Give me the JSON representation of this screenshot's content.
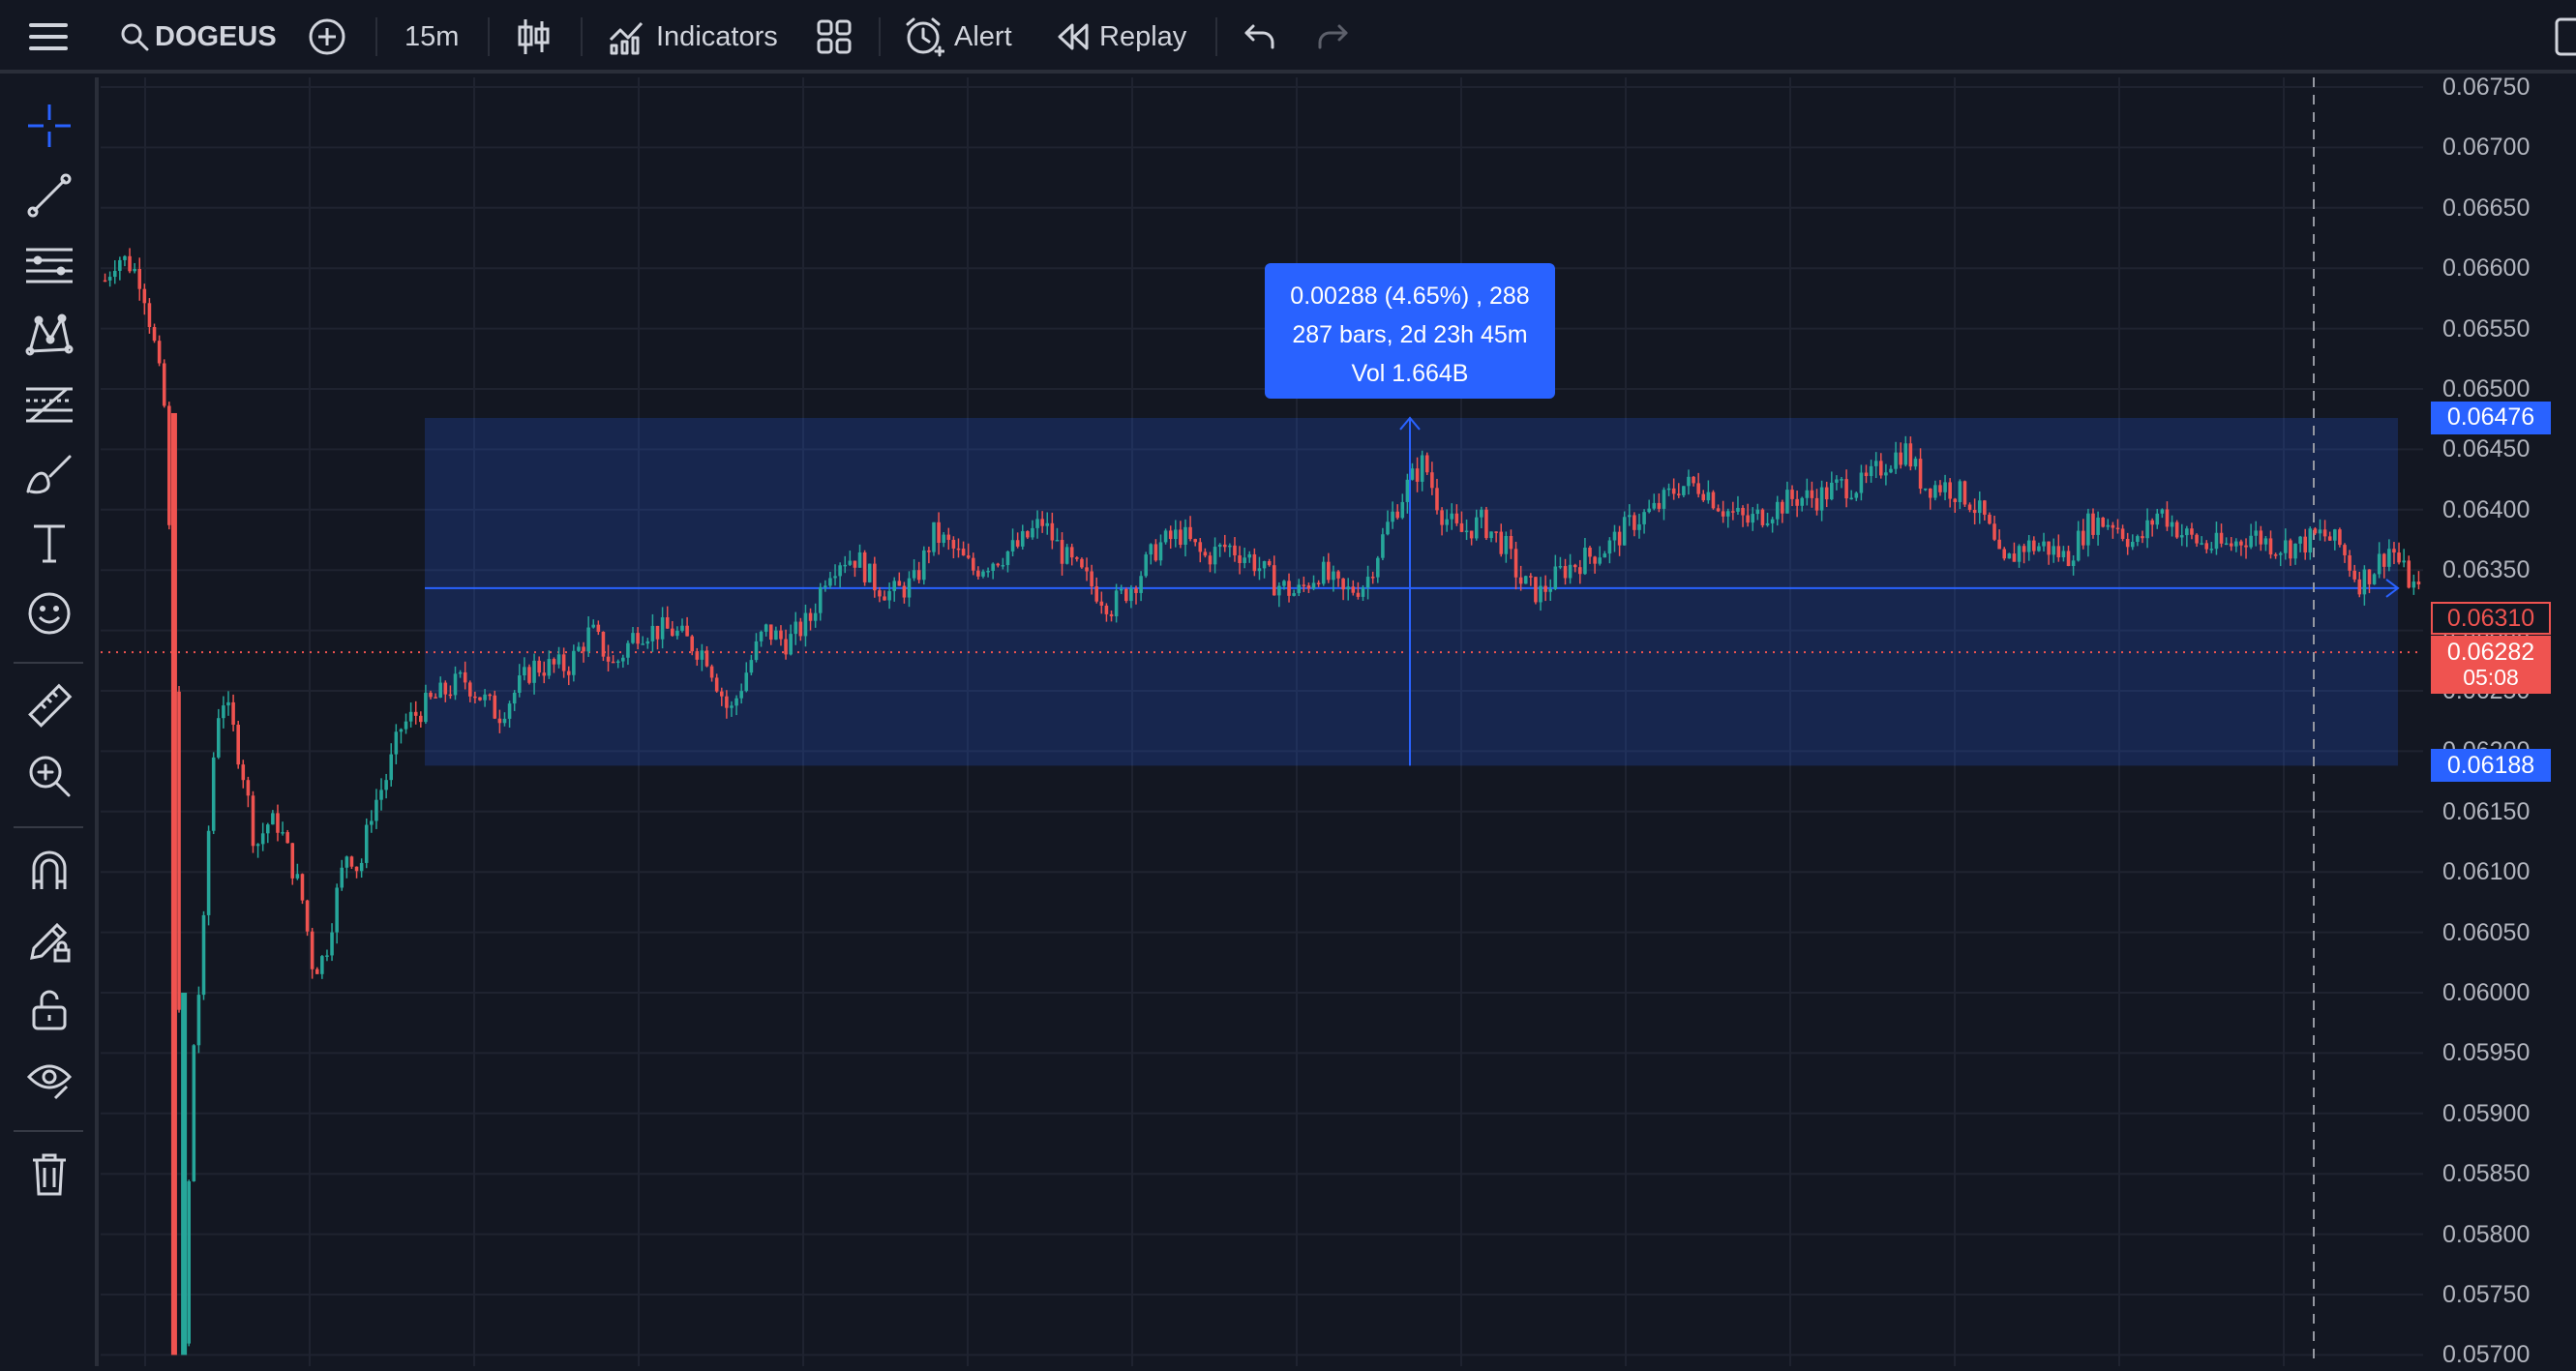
{
  "toolbar": {
    "symbol": "DOGEUS",
    "interval": "15m",
    "indicators_label": "Indicators",
    "alert_label": "Alert",
    "replay_label": "Replay",
    "icons": [
      "menu-icon",
      "search-icon",
      "add-symbol-icon",
      "candles-icon",
      "indicators-icon",
      "layouts-icon",
      "alert-icon",
      "replay-icon",
      "undo-icon",
      "redo-icon"
    ]
  },
  "sidebar": {
    "tools": [
      "crosshair",
      "trend-line",
      "horizontal-lines",
      "pattern",
      "fib",
      "brush",
      "text",
      "emoji",
      "ruler",
      "zoom-in",
      "magnet",
      "lock-drawing",
      "lock",
      "eye",
      "trash"
    ]
  },
  "measure": {
    "line1": "0.00288 (4.65%) , 288",
    "line2": "287 bars, 2d 23h 45m",
    "line3": "Vol 1.664B"
  },
  "price_axis": {
    "ticks": [
      "0.06750",
      "0.06700",
      "0.06650",
      "0.06600",
      "0.06550",
      "0.06500",
      "0.06450",
      "0.06400",
      "0.06350",
      "0.06300",
      "0.06250",
      "0.06200",
      "0.06150",
      "0.06100",
      "0.06050",
      "0.06000",
      "0.05950",
      "0.05900",
      "0.05850",
      "0.05800",
      "0.05750",
      "0.05700"
    ],
    "upper_range": "0.06476",
    "lower_range": "0.06188",
    "last_price": "0.06310",
    "current_price": "0.06282",
    "countdown": "05:08"
  },
  "colors": {
    "background": "#131722",
    "up": "#26a69a",
    "down": "#ef5350",
    "accent": "#2962ff",
    "range_fill": "rgba(41,98,255,0.20)"
  },
  "chart_data": {
    "type": "candlestick",
    "symbol": "DOGEUS",
    "interval": "15m",
    "ylim": [
      0.057,
      0.0675
    ],
    "range_top": 0.06476,
    "range_bottom": 0.06188,
    "range_start_price": 0.06335,
    "current": 0.06282,
    "close_path": [
      [
        0.0,
        0.0659
      ],
      [
        0.005,
        0.0661
      ],
      [
        0.01,
        0.06605
      ],
      [
        0.016,
        0.0659
      ],
      [
        0.021,
        0.0654
      ],
      [
        0.026,
        0.0648
      ],
      [
        0.03,
        0.0625
      ],
      [
        0.034,
        0.057
      ],
      [
        0.038,
        0.0595
      ],
      [
        0.042,
        0.0603
      ],
      [
        0.046,
        0.0618
      ],
      [
        0.05,
        0.0625
      ],
      [
        0.055,
        0.0622
      ],
      [
        0.06,
        0.0618
      ],
      [
        0.065,
        0.0612
      ],
      [
        0.07,
        0.0614
      ],
      [
        0.075,
        0.0614
      ],
      [
        0.08,
        0.0611
      ],
      [
        0.085,
        0.0608
      ],
      [
        0.09,
        0.0602
      ],
      [
        0.095,
        0.0603
      ],
      [
        0.1,
        0.0608
      ],
      [
        0.105,
        0.0612
      ],
      [
        0.11,
        0.061
      ],
      [
        0.115,
        0.0615
      ],
      [
        0.122,
        0.0618
      ],
      [
        0.128,
        0.0622
      ],
      [
        0.14,
        0.0624
      ],
      [
        0.155,
        0.0626
      ],
      [
        0.17,
        0.0623
      ],
      [
        0.185,
        0.0627
      ],
      [
        0.2,
        0.0627
      ],
      [
        0.21,
        0.063
      ],
      [
        0.22,
        0.0627
      ],
      [
        0.23,
        0.063
      ],
      [
        0.245,
        0.063
      ],
      [
        0.26,
        0.0628
      ],
      [
        0.27,
        0.0623
      ],
      [
        0.278,
        0.0627
      ],
      [
        0.285,
        0.063
      ],
      [
        0.295,
        0.0629
      ],
      [
        0.305,
        0.0631
      ],
      [
        0.312,
        0.0635
      ],
      [
        0.318,
        0.0636
      ],
      [
        0.325,
        0.0636
      ],
      [
        0.332,
        0.0634
      ],
      [
        0.34,
        0.0633
      ],
      [
        0.35,
        0.0634
      ],
      [
        0.358,
        0.0638
      ],
      [
        0.365,
        0.0637
      ],
      [
        0.375,
        0.0635
      ],
      [
        0.385,
        0.0636
      ],
      [
        0.395,
        0.0637
      ],
      [
        0.405,
        0.0639
      ],
      [
        0.415,
        0.0636
      ],
      [
        0.425,
        0.0634
      ],
      [
        0.435,
        0.0632
      ],
      [
        0.445,
        0.0634
      ],
      [
        0.455,
        0.0637
      ],
      [
        0.465,
        0.0638
      ],
      [
        0.475,
        0.0636
      ],
      [
        0.485,
        0.0637
      ],
      [
        0.495,
        0.0636
      ],
      [
        0.505,
        0.0634
      ],
      [
        0.515,
        0.0633
      ],
      [
        0.525,
        0.0635
      ],
      [
        0.535,
        0.0633
      ],
      [
        0.545,
        0.0634
      ],
      [
        0.555,
        0.0639
      ],
      [
        0.563,
        0.0642
      ],
      [
        0.57,
        0.0644
      ],
      [
        0.577,
        0.064
      ],
      [
        0.585,
        0.0638
      ],
      [
        0.595,
        0.0639
      ],
      [
        0.605,
        0.0637
      ],
      [
        0.612,
        0.0634
      ],
      [
        0.62,
        0.0633
      ],
      [
        0.63,
        0.0635
      ],
      [
        0.64,
        0.0636
      ],
      [
        0.65,
        0.0637
      ],
      [
        0.66,
        0.0639
      ],
      [
        0.67,
        0.064
      ],
      [
        0.68,
        0.0642
      ],
      [
        0.69,
        0.0642
      ],
      [
        0.7,
        0.064
      ],
      [
        0.71,
        0.0639
      ],
      [
        0.72,
        0.064
      ],
      [
        0.73,
        0.0641
      ],
      [
        0.74,
        0.0641
      ],
      [
        0.75,
        0.0642
      ],
      [
        0.76,
        0.0642
      ],
      [
        0.77,
        0.0644
      ],
      [
        0.778,
        0.0645
      ],
      [
        0.786,
        0.0642
      ],
      [
        0.795,
        0.0642
      ],
      [
        0.805,
        0.0641
      ],
      [
        0.813,
        0.0639
      ],
      [
        0.82,
        0.0635
      ],
      [
        0.828,
        0.0637
      ],
      [
        0.838,
        0.0637
      ],
      [
        0.848,
        0.0636
      ],
      [
        0.858,
        0.0639
      ],
      [
        0.868,
        0.0639
      ],
      [
        0.878,
        0.0637
      ],
      [
        0.888,
        0.064
      ],
      [
        0.898,
        0.0638
      ],
      [
        0.908,
        0.0637
      ],
      [
        0.918,
        0.0637
      ],
      [
        0.928,
        0.0638
      ],
      [
        0.938,
        0.0637
      ],
      [
        0.948,
        0.0637
      ],
      [
        0.958,
        0.0638
      ],
      [
        0.966,
        0.0637
      ],
      [
        0.974,
        0.0634
      ],
      [
        0.98,
        0.0635
      ],
      [
        0.988,
        0.0637
      ],
      [
        0.993,
        0.0635
      ],
      [
        1.0,
        0.0633
      ]
    ]
  }
}
